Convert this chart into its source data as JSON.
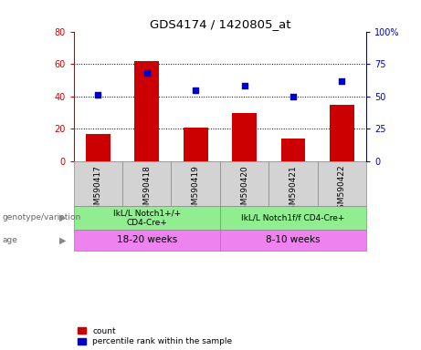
{
  "title": "GDS4174 / 1420805_at",
  "samples": [
    "GSM590417",
    "GSM590418",
    "GSM590419",
    "GSM590420",
    "GSM590421",
    "GSM590422"
  ],
  "counts": [
    17,
    62,
    21,
    30,
    14,
    35
  ],
  "percentile_ranks": [
    51,
    68,
    55,
    58,
    50,
    62
  ],
  "left_ylim": [
    0,
    80
  ],
  "right_ylim": [
    0,
    100
  ],
  "left_yticks": [
    0,
    20,
    40,
    60,
    80
  ],
  "right_yticks": [
    0,
    25,
    50,
    75,
    100
  ],
  "right_yticklabels": [
    "0",
    "25",
    "50",
    "75",
    "100%"
  ],
  "bar_color": "#cc0000",
  "dot_color": "#0000cc",
  "genotype_groups": [
    {
      "label": "IkL/L Notch1+/+\nCD4-Cre+",
      "start": 0,
      "end": 3,
      "color": "#90ee90"
    },
    {
      "label": "IkL/L Notch1f/f CD4-Cre+",
      "start": 3,
      "end": 6,
      "color": "#90ee90"
    }
  ],
  "age_groups": [
    {
      "label": "18-20 weeks",
      "start": 0,
      "end": 3,
      "color": "#ee82ee"
    },
    {
      "label": "8-10 weeks",
      "start": 3,
      "end": 6,
      "color": "#ee82ee"
    }
  ],
  "left_label_text": "genotype/variation",
  "age_label_text": "age",
  "legend_count_label": "count",
  "legend_percentile_label": "percentile rank within the sample",
  "tick_color_left": "#cc0000",
  "tick_color_right": "#0000cc",
  "sample_bg_color": "#d3d3d3",
  "border_color": "#888888"
}
